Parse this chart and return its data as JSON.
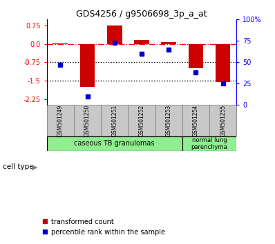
{
  "title": "GDS4256 / g9506698_3p_a_at",
  "samples": [
    "GSM501249",
    "GSM501250",
    "GSM501251",
    "GSM501252",
    "GSM501253",
    "GSM501254",
    "GSM501255"
  ],
  "red_bars": [
    0.02,
    -1.75,
    0.75,
    0.15,
    0.08,
    -1.0,
    -1.55
  ],
  "blue_dots_pct": [
    47,
    10,
    73,
    60,
    65,
    38,
    25
  ],
  "ylim_left": [
    -2.5,
    1.0
  ],
  "ylim_right": [
    0,
    100
  ],
  "yticks_left": [
    0.75,
    0.0,
    -0.75,
    -1.5,
    -2.25
  ],
  "yticks_right": [
    100,
    75,
    50,
    25,
    0
  ],
  "ytick_labels_right": [
    "100%",
    "75",
    "50",
    "25",
    "0"
  ],
  "bar_color": "#cc0000",
  "dot_color": "#0000cc",
  "bar_width": 0.55,
  "legend_red_label": "transformed count",
  "legend_blue_label": "percentile rank within the sample",
  "cell_type_label": "cell type",
  "group1_label": "caseous TB granulomas",
  "group2_label": "normal lung\nparenchyma",
  "group_color": "#90ee90",
  "sample_box_color": "#c8c8c8"
}
